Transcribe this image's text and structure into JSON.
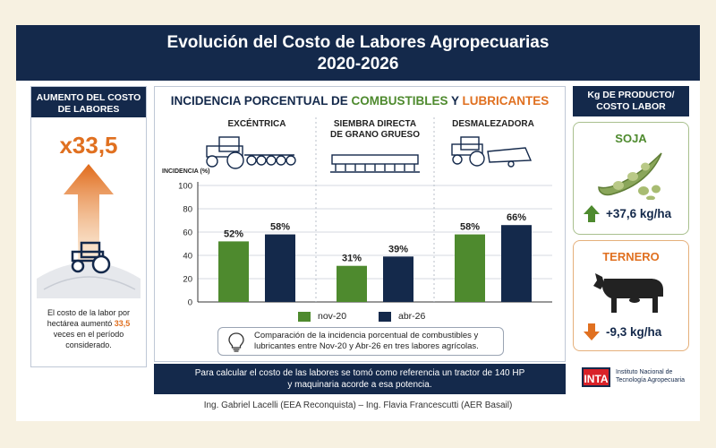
{
  "header": {
    "title_line1": "Evolución del Costo de Labores Agropecuarias",
    "title_line2": "2020-2026"
  },
  "left_panel": {
    "title": "AUMENTO DEL COSTO DE LABORES",
    "multiplier": "x33,5",
    "note_before": "El costo de la labor por hectárea aumentó ",
    "note_highlight": "33,5",
    "note_after": " veces en el período considerado.",
    "icons": [
      "up-arrow-icon",
      "tractor-icon"
    ]
  },
  "chart_title": {
    "part1": "INCIDENCIA PORCENTUAL DE ",
    "part2": "COMBUSTIBLES",
    "part3": " Y ",
    "part4": "LUBRICANTES"
  },
  "chart_data": {
    "type": "bar",
    "title": "INCIDENCIA PORCENTUAL DE COMBUSTIBLES Y LUBRICANTES",
    "ylabel": "INCIDENCIA (%)",
    "xlabel": "",
    "ylim": [
      0,
      100
    ],
    "yticks": [
      0,
      20,
      40,
      60,
      80,
      100
    ],
    "categories": [
      "EXCÉNTRICA",
      "SIEMBRA DIRECTA\nDE GRANO GRUESO",
      "DESMALEZADORA"
    ],
    "category_lines": [
      [
        "EXCÉNTRICA"
      ],
      [
        "SIEMBRA DIRECTA",
        "DE GRANO GRUESO"
      ],
      [
        "DESMALEZADORA"
      ]
    ],
    "series": [
      {
        "name": "nov-20",
        "values": [
          52,
          31,
          58
        ],
        "labels": [
          "52%",
          "31%",
          "58%"
        ],
        "color": "#4e8a2e"
      },
      {
        "name": "abr-26",
        "values": [
          58,
          39,
          66
        ],
        "labels": [
          "58%",
          "39%",
          "66%"
        ],
        "color": "#14294b"
      }
    ],
    "grid": true,
    "legend": "bottom"
  },
  "info_text": "Comparación de la incidencia porcentual de combustibles y lubricantes entre Nov-20 y Abr-26 en tres labores agrícolas.",
  "bottom_note": {
    "line1": "Para calcular el costo de las labores se tomó como referencia un tractor de 140 HP",
    "line2": "y maquinaria acorde a esa potencia."
  },
  "right_panel": {
    "title": "Kg DE PRODUCTO/ COSTO LABOR",
    "items": [
      {
        "name": "SOJA",
        "value": "+37,6 kg/ha",
        "icon": "soybean-pod-icon",
        "arrow": "up-arrow-icon",
        "color": "#4e8a2e"
      },
      {
        "name": "TERNERO",
        "value": "-9,3 kg/ha",
        "icon": "cow-icon",
        "arrow": "down-arrow-icon",
        "color": "#e07020"
      }
    ]
  },
  "inta": {
    "logo": "INTA",
    "name_line1": "Instituto Nacional de",
    "name_line2": "Tecnología Agropecuaria"
  },
  "credits": "Ing. Gabriel Lacelli (EEA Reconquista) – Ing. Flavia Francescutti (AER Basail)"
}
